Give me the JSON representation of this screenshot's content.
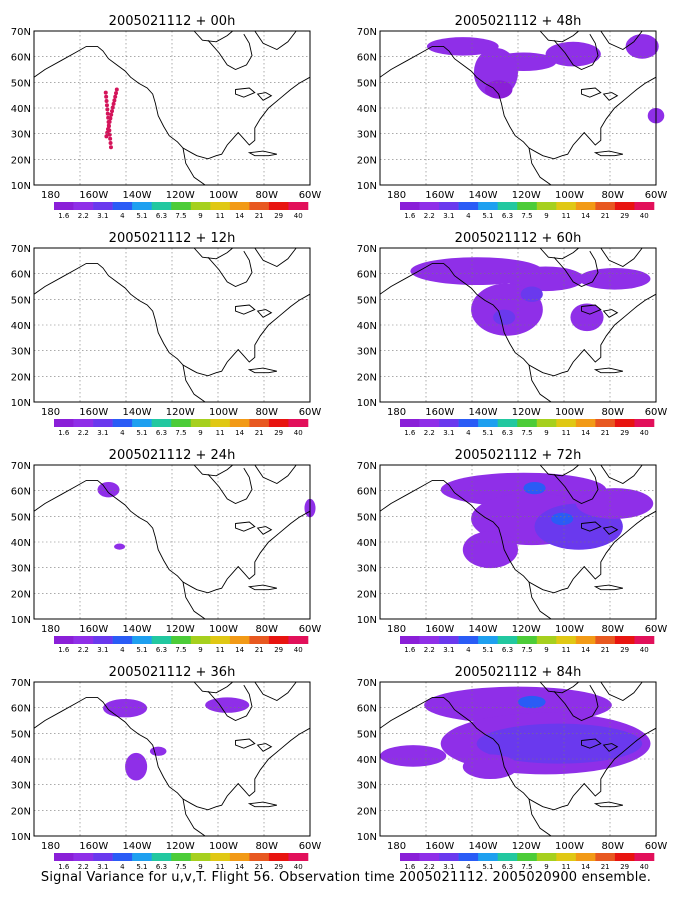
{
  "figure_caption": "Signal Variance for u,v,T. Flight 56. Observation time 2005021112. 2005020900 ensemble.",
  "lat_labels": [
    "70N",
    "60N",
    "50N",
    "40N",
    "30N",
    "20N",
    "10N"
  ],
  "lon_labels": [
    "180",
    "160W",
    "140W",
    "120W",
    "100W",
    "80W",
    "60W"
  ],
  "colorbar": {
    "labels": [
      "1.6",
      "2.2",
      "3.1",
      "4",
      "5.1",
      "6.3",
      "7.5",
      "9",
      "11",
      "14",
      "21",
      "29",
      "40"
    ],
    "colors": [
      "#8a1fd8",
      "#8f2fe8",
      "#6a39ee",
      "#2a5cf6",
      "#1ea0f0",
      "#22c8a0",
      "#4ccc38",
      "#a6d01e",
      "#e0c814",
      "#f29a16",
      "#e85820",
      "#e81410",
      "#e2105a"
    ]
  },
  "panels": [
    {
      "title": "2005021112 + 00h"
    },
    {
      "title": "2005021112 + 48h"
    },
    {
      "title": "2005021112 + 12h"
    },
    {
      "title": "2005021112 + 60h"
    },
    {
      "title": "2005021112 + 24h"
    },
    {
      "title": "2005021112 + 72h"
    },
    {
      "title": "2005021112 + 36h"
    },
    {
      "title": "2005021112 + 84h"
    }
  ]
}
